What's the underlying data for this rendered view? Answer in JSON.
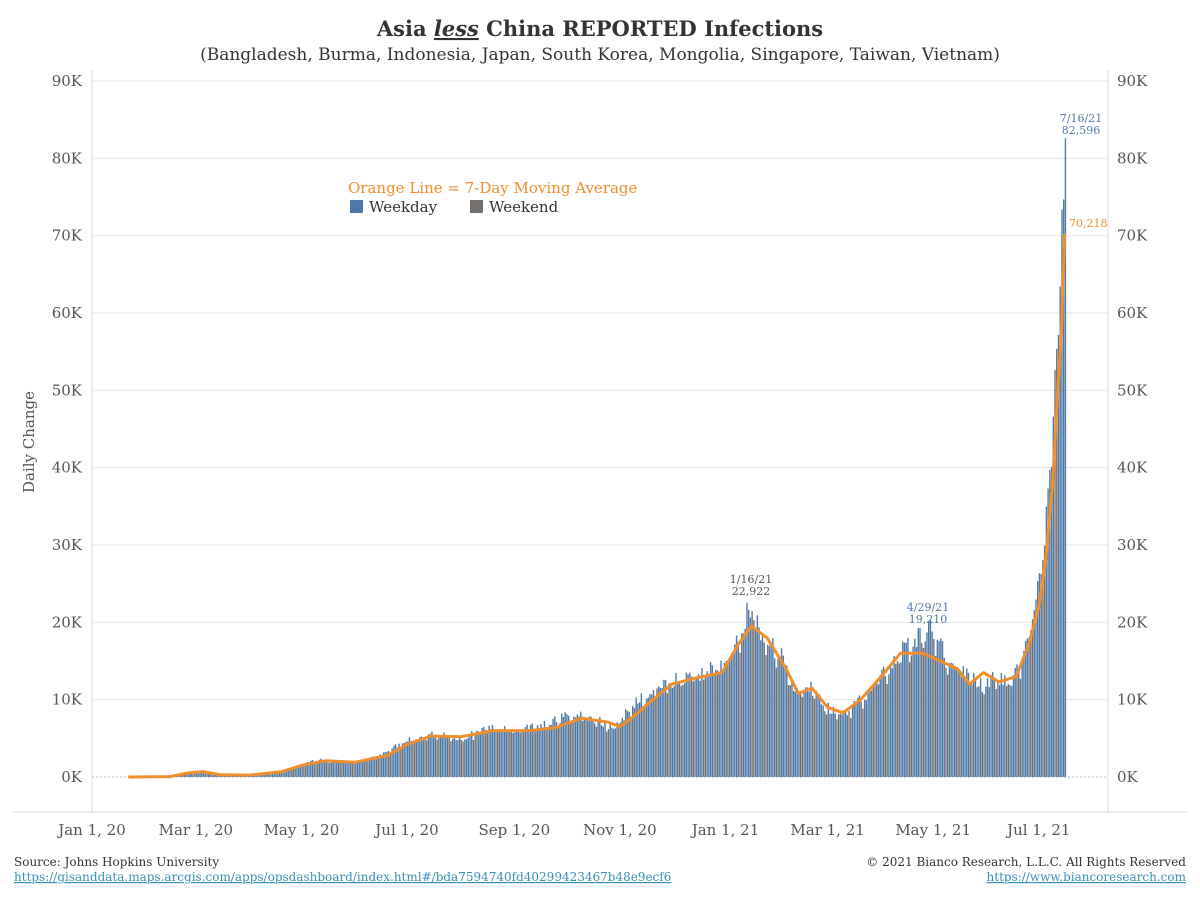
{
  "title": {
    "prefix": "Asia ",
    "emphasis": "less",
    "suffix": " China REPORTED Infections"
  },
  "subtitle": "(Bangladesh, Burma, Indonesia, Japan, South Korea, Mongolia, Singapore, Taiwan, Vietnam)",
  "colors": {
    "weekday": "#4e79a7",
    "weekend": "#76706c",
    "moving_average": "#f28e2b",
    "grid": "#e6e6e6",
    "link": "#3a8fb7"
  },
  "legend": {
    "title": "Orange Line = 7-Day Moving Average",
    "weekday_label": "Weekday",
    "weekend_label": "Weekend"
  },
  "annotations": {
    "peak_date": "7/16/21",
    "peak_value": "82,596",
    "ma_value": "70,218",
    "jan_date": "1/16/21",
    "jan_value": "22,922",
    "apr_date": "4/29/21",
    "apr_value": "19,210"
  },
  "footer": {
    "source_label": "Source: Johns Hopkins University",
    "source_url": "https://gisanddata.maps.arcgis.com/apps/opsdashboard/index.html#/bda7594740fd40299423467b48e9ecf6",
    "copyright": "© 2021 Bianco Research, L.L.C. All Rights Reserved",
    "site_url": "https://www.biancoresearch.com"
  },
  "chart_data": {
    "type": "bar",
    "ylabel": "Daily Change",
    "xlabel": "",
    "ylim": [
      0,
      90000
    ],
    "y_ticks": [
      "0K",
      "10K",
      "20K",
      "30K",
      "40K",
      "50K",
      "60K",
      "70K",
      "80K",
      "90K"
    ],
    "x_ticks": [
      "Jan 1, 20",
      "Mar 1, 20",
      "May 1, 20",
      "Jul 1, 20",
      "Sep 1, 20",
      "Nov 1, 20",
      "Jan 1, 21",
      "Mar 1, 21",
      "May 1, 21",
      "Jul 1, 21"
    ],
    "x_range": [
      "2020-01-01",
      "2021-08-10"
    ],
    "grid": true,
    "legend_position": "upper-left",
    "series": [
      {
        "name": "Weekday",
        "kind": "bars",
        "points": [
          [
            "2020-01-22",
            0
          ],
          [
            "2020-02-01",
            50
          ],
          [
            "2020-02-15",
            150
          ],
          [
            "2020-02-25",
            600
          ],
          [
            "2020-03-01",
            700
          ],
          [
            "2020-03-10",
            300
          ],
          [
            "2020-03-20",
            150
          ],
          [
            "2020-04-01",
            300
          ],
          [
            "2020-04-15",
            600
          ],
          [
            "2020-05-01",
            1600
          ],
          [
            "2020-05-10",
            2300
          ],
          [
            "2020-05-20",
            1900
          ],
          [
            "2020-06-01",
            2000
          ],
          [
            "2020-06-15",
            2800
          ],
          [
            "2020-07-01",
            4800
          ],
          [
            "2020-07-15",
            5600
          ],
          [
            "2020-08-01",
            5000
          ],
          [
            "2020-08-15",
            6300
          ],
          [
            "2020-09-01",
            6100
          ],
          [
            "2020-09-15",
            6600
          ],
          [
            "2020-10-01",
            7900
          ],
          [
            "2020-10-10",
            8000
          ],
          [
            "2020-10-20",
            7200
          ],
          [
            "2020-10-28",
            6300
          ],
          [
            "2020-11-10",
            9800
          ],
          [
            "2020-11-25",
            12000
          ],
          [
            "2020-12-10",
            13200
          ],
          [
            "2020-12-28",
            14000
          ],
          [
            "2021-01-05",
            16500
          ],
          [
            "2021-01-10",
            19500
          ],
          [
            "2021-01-16",
            22922
          ],
          [
            "2021-01-20",
            18500
          ],
          [
            "2021-02-01",
            16000
          ],
          [
            "2021-02-10",
            11000
          ],
          [
            "2021-02-20",
            11500
          ],
          [
            "2021-03-01",
            9000
          ],
          [
            "2021-03-10",
            8200
          ],
          [
            "2021-03-20",
            10000
          ],
          [
            "2021-04-01",
            13000
          ],
          [
            "2021-04-15",
            17000
          ],
          [
            "2021-04-29",
            19210
          ],
          [
            "2021-05-10",
            15000
          ],
          [
            "2021-05-20",
            13500
          ],
          [
            "2021-05-28",
            12000
          ],
          [
            "2021-06-05",
            13000
          ],
          [
            "2021-06-15",
            12500
          ],
          [
            "2021-06-22",
            16000
          ],
          [
            "2021-06-28",
            22000
          ],
          [
            "2021-07-03",
            30000
          ],
          [
            "2021-07-07",
            38000
          ],
          [
            "2021-07-10",
            54000
          ],
          [
            "2021-07-12",
            58000
          ],
          [
            "2021-07-14",
            72000
          ],
          [
            "2021-07-15",
            79000
          ],
          [
            "2021-07-16",
            82596
          ]
        ]
      },
      {
        "name": "7-Day Moving Average",
        "kind": "line",
        "points": [
          [
            "2020-01-22",
            0
          ],
          [
            "2020-02-15",
            50
          ],
          [
            "2020-02-25",
            500
          ],
          [
            "2020-03-05",
            700
          ],
          [
            "2020-03-15",
            300
          ],
          [
            "2020-04-01",
            250
          ],
          [
            "2020-04-20",
            700
          ],
          [
            "2020-05-01",
            1500
          ],
          [
            "2020-05-15",
            2100
          ],
          [
            "2020-06-01",
            1900
          ],
          [
            "2020-06-20",
            2800
          ],
          [
            "2020-07-01",
            4200
          ],
          [
            "2020-07-15",
            5300
          ],
          [
            "2020-08-01",
            5200
          ],
          [
            "2020-08-20",
            6000
          ],
          [
            "2020-09-10",
            6000
          ],
          [
            "2020-09-25",
            6400
          ],
          [
            "2020-10-10",
            7600
          ],
          [
            "2020-10-25",
            7100
          ],
          [
            "2020-11-01",
            6500
          ],
          [
            "2020-11-10",
            8000
          ],
          [
            "2020-11-20",
            10000
          ],
          [
            "2020-12-01",
            12000
          ],
          [
            "2020-12-15",
            12800
          ],
          [
            "2020-12-30",
            13500
          ],
          [
            "2021-01-08",
            17000
          ],
          [
            "2021-01-16",
            19500
          ],
          [
            "2021-01-25",
            18000
          ],
          [
            "2021-02-05",
            14000
          ],
          [
            "2021-02-12",
            10800
          ],
          [
            "2021-02-20",
            11500
          ],
          [
            "2021-03-01",
            9000
          ],
          [
            "2021-03-10",
            8300
          ],
          [
            "2021-03-20",
            10000
          ],
          [
            "2021-04-01",
            13000
          ],
          [
            "2021-04-12",
            16000
          ],
          [
            "2021-04-25",
            16000
          ],
          [
            "2021-05-05",
            15000
          ],
          [
            "2021-05-15",
            14000
          ],
          [
            "2021-05-22",
            12000
          ],
          [
            "2021-05-30",
            13500
          ],
          [
            "2021-06-08",
            12300
          ],
          [
            "2021-06-18",
            13000
          ],
          [
            "2021-06-25",
            17000
          ],
          [
            "2021-07-01",
            22000
          ],
          [
            "2021-07-05",
            28000
          ],
          [
            "2021-07-09",
            38000
          ],
          [
            "2021-07-12",
            50000
          ],
          [
            "2021-07-14",
            57000
          ],
          [
            "2021-07-16",
            70218
          ]
        ]
      }
    ]
  }
}
